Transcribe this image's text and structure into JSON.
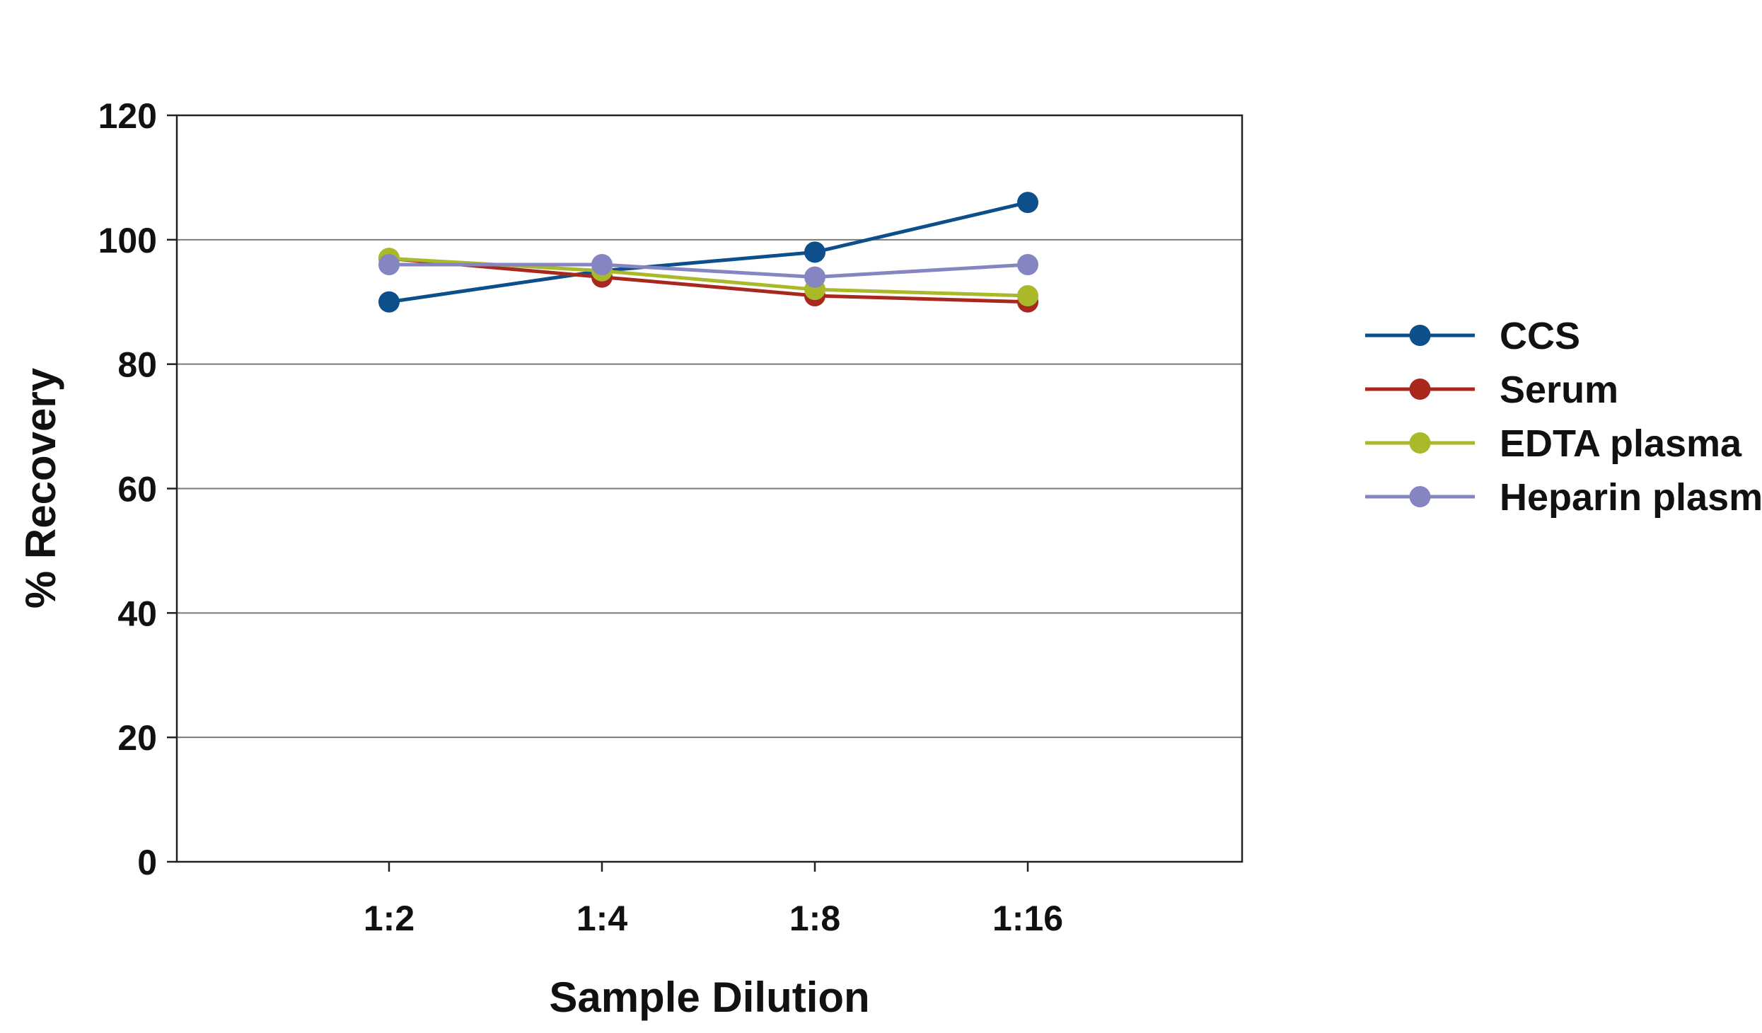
{
  "chart_data": {
    "type": "line",
    "title": "",
    "xlabel": "Sample Dilution",
    "ylabel": "% Recovery",
    "categories": [
      "1:2",
      "1:4",
      "1:8",
      "1:16"
    ],
    "ylim": [
      0,
      120
    ],
    "yticks": [
      "0",
      "20",
      "40",
      "60",
      "80",
      "100",
      "120"
    ],
    "grid": "horizontal",
    "legend_position": "right",
    "series": [
      {
        "name": "CCS",
        "color": "#0d4f8b",
        "values": [
          90,
          95,
          98,
          106
        ]
      },
      {
        "name": "Serum",
        "color": "#a8281e",
        "values": [
          97,
          94,
          91,
          90
        ]
      },
      {
        "name": "EDTA plasma",
        "color": "#aab92a",
        "values": [
          97,
          95,
          92,
          91
        ]
      },
      {
        "name": "Heparin plasma",
        "color": "#8585c2",
        "values": [
          96,
          96,
          94,
          96
        ]
      }
    ]
  }
}
